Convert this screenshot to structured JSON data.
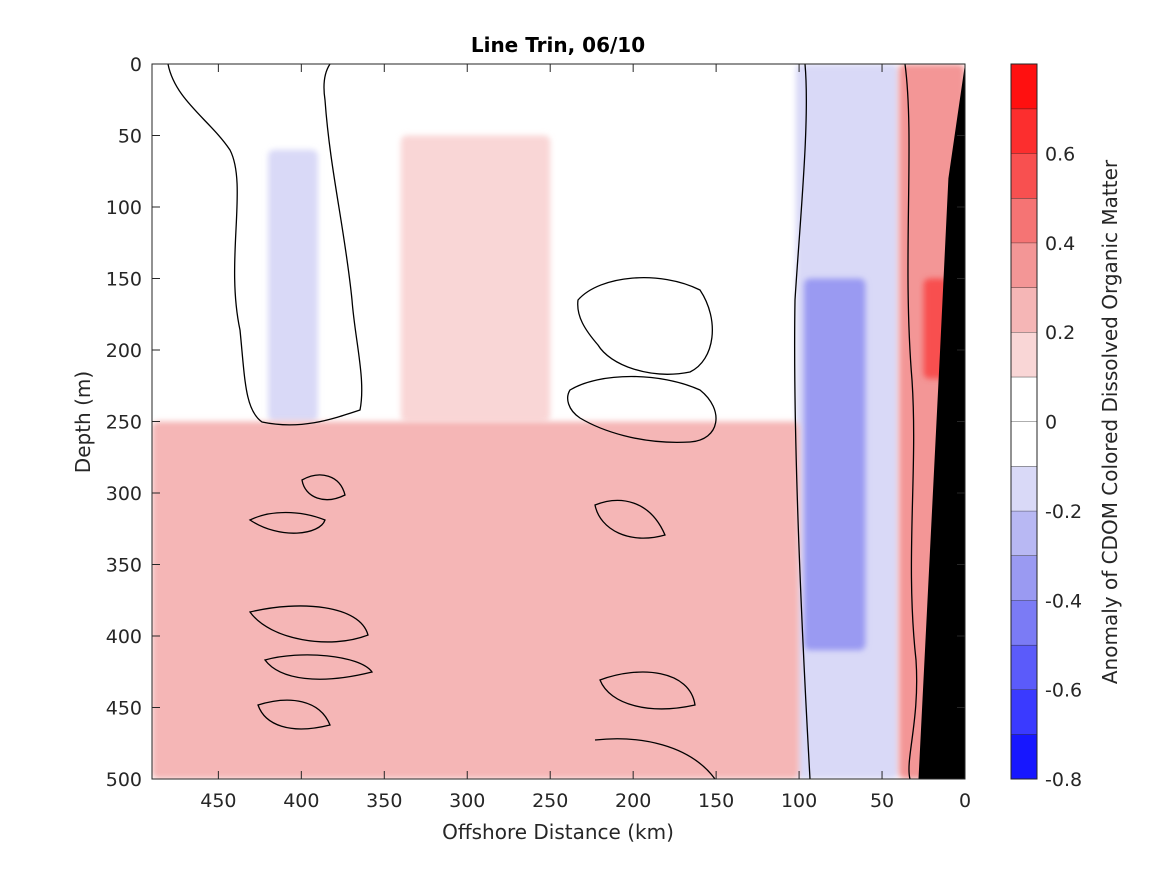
{
  "chart_data": {
    "type": "heatmap",
    "title": "Line Trin, 06/10",
    "xlabel": "Offshore Distance (km)",
    "ylabel": "Depth (m)",
    "xlim": [
      490,
      0
    ],
    "ylim": [
      0,
      500
    ],
    "x_reversed": true,
    "y_reversed": true,
    "x_ticks": [
      "450",
      "400",
      "350",
      "300",
      "250",
      "200",
      "150",
      "100",
      "50",
      "0"
    ],
    "x_tick_values": [
      450,
      400,
      350,
      300,
      250,
      200,
      150,
      100,
      50,
      0
    ],
    "y_ticks": [
      "0",
      "50",
      "100",
      "150",
      "200",
      "250",
      "300",
      "350",
      "400",
      "450",
      "500"
    ],
    "y_tick_values": [
      0,
      50,
      100,
      150,
      200,
      250,
      300,
      350,
      400,
      450,
      500
    ],
    "colorbar": {
      "label": "Anomaly of CDOM Colored Dissolved Organic Matter",
      "range": [
        -0.8,
        0.8
      ],
      "ticks": [
        "0.6",
        "0.4",
        "0.2",
        "0",
        "-0.2",
        "-0.4",
        "-0.6",
        "-0.8"
      ],
      "tick_values": [
        0.6,
        0.4,
        0.2,
        0,
        -0.2,
        -0.4,
        -0.6,
        -0.8
      ],
      "levels": [
        {
          "from": -0.8,
          "to": -0.7,
          "color": "#1717ff"
        },
        {
          "from": -0.7,
          "to": -0.6,
          "color": "#3a3aff"
        },
        {
          "from": -0.6,
          "to": -0.5,
          "color": "#5b5bfa"
        },
        {
          "from": -0.5,
          "to": -0.4,
          "color": "#7b7bf5"
        },
        {
          "from": -0.4,
          "to": -0.3,
          "color": "#9a9af2"
        },
        {
          "from": -0.3,
          "to": -0.2,
          "color": "#b8b8f3"
        },
        {
          "from": -0.2,
          "to": -0.1,
          "color": "#d9d9f7"
        },
        {
          "from": -0.1,
          "to": 0.0,
          "color": "#ffffff"
        },
        {
          "from": 0.0,
          "to": 0.1,
          "color": "#ffffff"
        },
        {
          "from": 0.1,
          "to": 0.2,
          "color": "#f9d6d6"
        },
        {
          "from": 0.2,
          "to": 0.3,
          "color": "#f5b6b6"
        },
        {
          "from": 0.3,
          "to": 0.4,
          "color": "#f39696"
        },
        {
          "from": 0.4,
          "to": 0.5,
          "color": "#f57474"
        },
        {
          "from": 0.5,
          "to": 0.6,
          "color": "#f85050"
        },
        {
          "from": 0.6,
          "to": 0.7,
          "color": "#fc2e2e"
        },
        {
          "from": 0.7,
          "to": 0.8,
          "color": "#ff1010"
        }
      ]
    },
    "regions": [
      {
        "name": "nearshore-negative-band",
        "x_range": [
          102,
          40
        ],
        "depth_range": [
          0,
          500
        ],
        "value": -0.15
      },
      {
        "name": "nearshore-negative-core",
        "x_range": [
          97,
          60
        ],
        "depth_range": [
          150,
          410
        ],
        "value": -0.35
      },
      {
        "name": "coastal-positive-band",
        "x_range": [
          40,
          0
        ],
        "depth_range": [
          0,
          500
        ],
        "value": 0.3
      },
      {
        "name": "coastal-positive-core",
        "x_range": [
          25,
          10
        ],
        "depth_range": [
          150,
          220
        ],
        "value": 0.55
      },
      {
        "name": "offshore-negative-patch",
        "x_range": [
          420,
          390
        ],
        "depth_range": [
          60,
          250
        ],
        "value": -0.15
      },
      {
        "name": "offshore-positive-midwater",
        "x_range": [
          340,
          250
        ],
        "depth_range": [
          50,
          250
        ],
        "value": 0.15
      },
      {
        "name": "offshore-positive-deep",
        "x_range": [
          490,
          100
        ],
        "depth_range": [
          250,
          500
        ],
        "value": 0.2
      }
    ],
    "bathymetry": {
      "color": "#000000",
      "points": [
        [
          0,
          0
        ],
        [
          10,
          80
        ],
        [
          15,
          200
        ],
        [
          28,
          500
        ],
        [
          0,
          500
        ]
      ]
    },
    "colors": {
      "background": "#ffffff",
      "axis": "#262626",
      "contour": "#000000",
      "land": "#000000"
    }
  }
}
